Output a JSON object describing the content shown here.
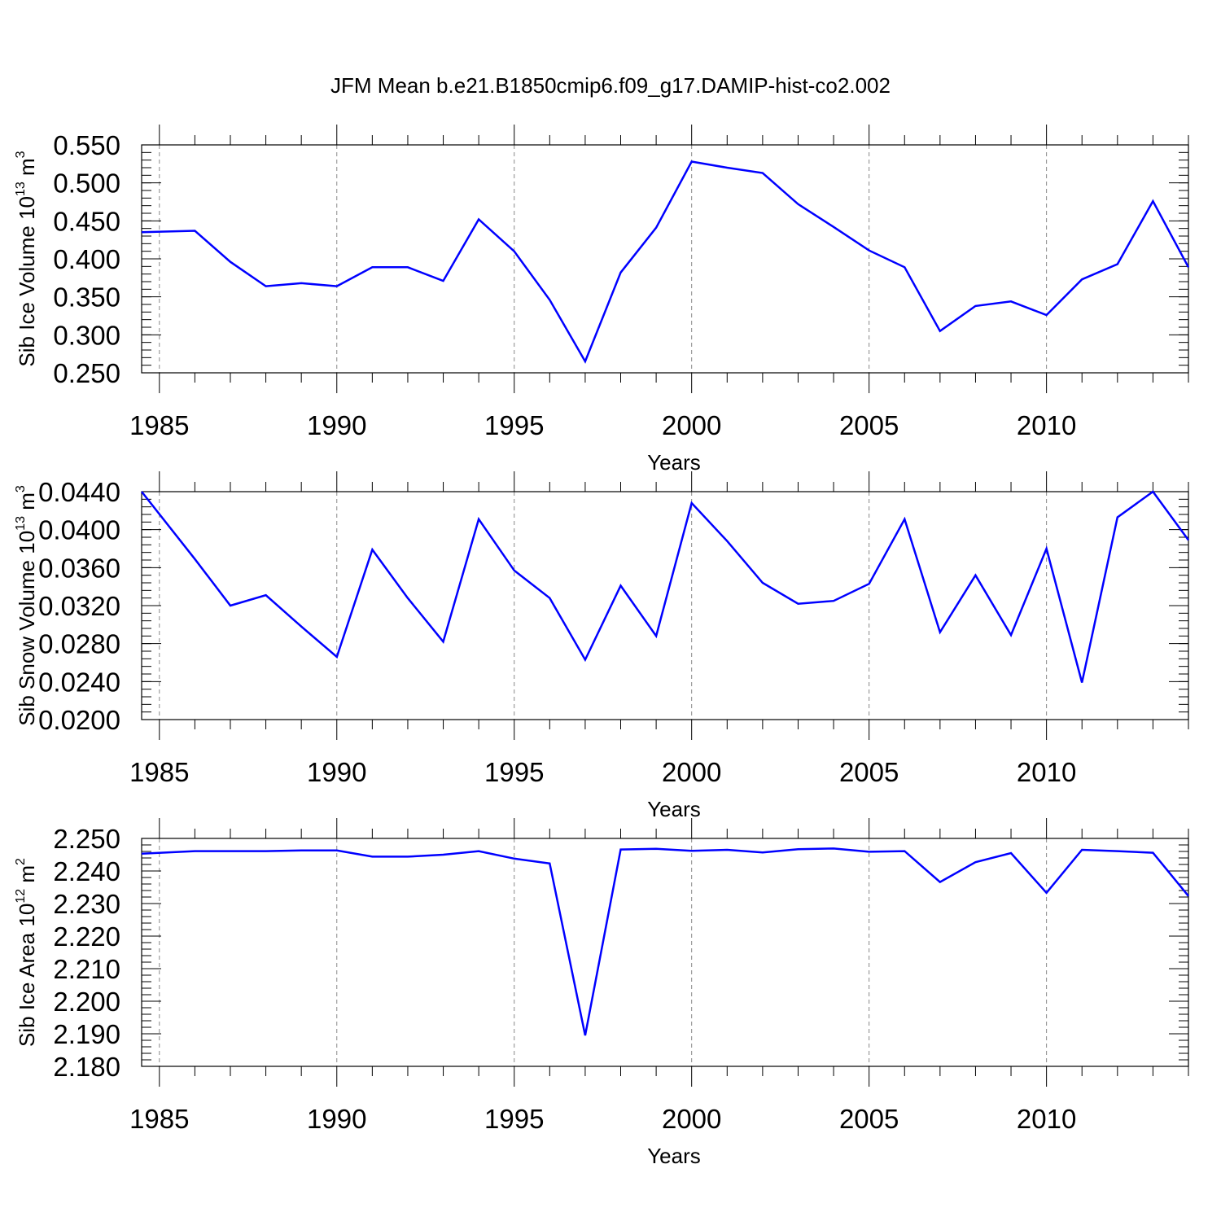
{
  "figure": {
    "title": "JFM Mean b.e21.B1850cmip6.f09_g17.DAMIP-hist-co2.002",
    "line_color": "#0000ff"
  },
  "chart_data": [
    {
      "type": "line",
      "name": "ice-volume",
      "title": "",
      "xlabel": "Years",
      "ylabel_parts": [
        "Sib Ice Volume 10",
        "13",
        " m",
        "3"
      ],
      "xlim": [
        1984.5,
        2014
      ],
      "ylim": [
        0.25,
        0.55
      ],
      "x_ticks": [
        1985,
        1990,
        1995,
        2000,
        2005,
        2010
      ],
      "y_ticks": [
        "0.250",
        "0.300",
        "0.350",
        "0.400",
        "0.450",
        "0.500",
        "0.550"
      ],
      "y_minor_step": 0.01,
      "x": [
        1984.5,
        1986,
        1987,
        1988,
        1989,
        1990,
        1991,
        1992,
        1993,
        1994,
        1995,
        1996,
        1997,
        1998,
        1999,
        2000,
        2001,
        2002,
        2003,
        2004,
        2005,
        2006,
        2007,
        2008,
        2009,
        2010,
        2011,
        2012,
        2013,
        2014
      ],
      "series": [
        {
          "name": "Sib Ice Volume",
          "values": [
            0.435,
            0.437,
            0.396,
            0.364,
            0.368,
            0.364,
            0.389,
            0.389,
            0.371,
            0.452,
            0.41,
            0.346,
            0.265,
            0.382,
            0.441,
            0.528,
            0.52,
            0.513,
            0.472,
            0.442,
            0.411,
            0.389,
            0.305,
            0.338,
            0.344,
            0.326,
            0.373,
            0.393,
            0.476,
            0.389
          ]
        }
      ]
    },
    {
      "type": "line",
      "name": "snow-volume",
      "title": "",
      "xlabel": "Years",
      "ylabel_parts": [
        "Sib Snow Volume 10",
        "13",
        " m",
        "3"
      ],
      "xlim": [
        1984.5,
        2014
      ],
      "ylim": [
        0.02,
        0.044
      ],
      "x_ticks": [
        1985,
        1990,
        1995,
        2000,
        2005,
        2010
      ],
      "y_ticks": [
        "0.0200",
        "0.0240",
        "0.0280",
        "0.0320",
        "0.0360",
        "0.0400",
        "0.0440"
      ],
      "y_minor_step": 0.0008,
      "x": [
        1984.5,
        1986,
        1987,
        1988,
        1989,
        1990,
        1991,
        1992,
        1993,
        1994,
        1995,
        1996,
        1997,
        1998,
        1999,
        2000,
        2001,
        2002,
        2003,
        2004,
        2005,
        2006,
        2007,
        2008,
        2009,
        2010,
        2011,
        2012,
        2013,
        2014
      ],
      "series": [
        {
          "name": "Sib Snow Volume",
          "values": [
            0.044,
            0.0369,
            0.032,
            0.0331,
            0.0298,
            0.0266,
            0.0379,
            0.0328,
            0.0282,
            0.0411,
            0.0357,
            0.0328,
            0.0263,
            0.0341,
            0.0288,
            0.0428,
            0.0388,
            0.0344,
            0.0322,
            0.0325,
            0.0343,
            0.0411,
            0.0292,
            0.0352,
            0.0289,
            0.038,
            0.0239,
            0.0413,
            0.044,
            0.0389
          ]
        }
      ]
    },
    {
      "type": "line",
      "name": "ice-area",
      "title": "",
      "xlabel": "Years",
      "ylabel_parts": [
        "Sib Ice Area 10",
        "12",
        " m",
        "2"
      ],
      "xlim": [
        1984.5,
        2014
      ],
      "ylim": [
        2.18,
        2.25
      ],
      "x_ticks": [
        1985,
        1990,
        1995,
        2000,
        2005,
        2010
      ],
      "y_ticks": [
        "2.180",
        "2.190",
        "2.200",
        "2.210",
        "2.220",
        "2.230",
        "2.240",
        "2.250"
      ],
      "y_minor_step": 0.002,
      "x": [
        1984.5,
        1986,
        1987,
        1988,
        1989,
        1990,
        1991,
        1992,
        1993,
        1994,
        1995,
        1996,
        1997,
        1998,
        1999,
        2000,
        2001,
        2002,
        2003,
        2004,
        2005,
        2006,
        2007,
        2008,
        2009,
        2010,
        2011,
        2012,
        2013,
        2014
      ],
      "series": [
        {
          "name": "Sib Ice Area",
          "values": [
            2.2453,
            2.2461,
            2.2461,
            2.2461,
            2.2463,
            2.2463,
            2.2444,
            2.2444,
            2.245,
            2.2461,
            2.2438,
            2.2423,
            2.1895,
            2.2466,
            2.2468,
            2.2462,
            2.2465,
            2.2457,
            2.2467,
            2.2469,
            2.2459,
            2.2461,
            2.2366,
            2.2427,
            2.2455,
            2.2333,
            2.2465,
            2.2461,
            2.2456,
            2.2323
          ]
        }
      ]
    }
  ]
}
